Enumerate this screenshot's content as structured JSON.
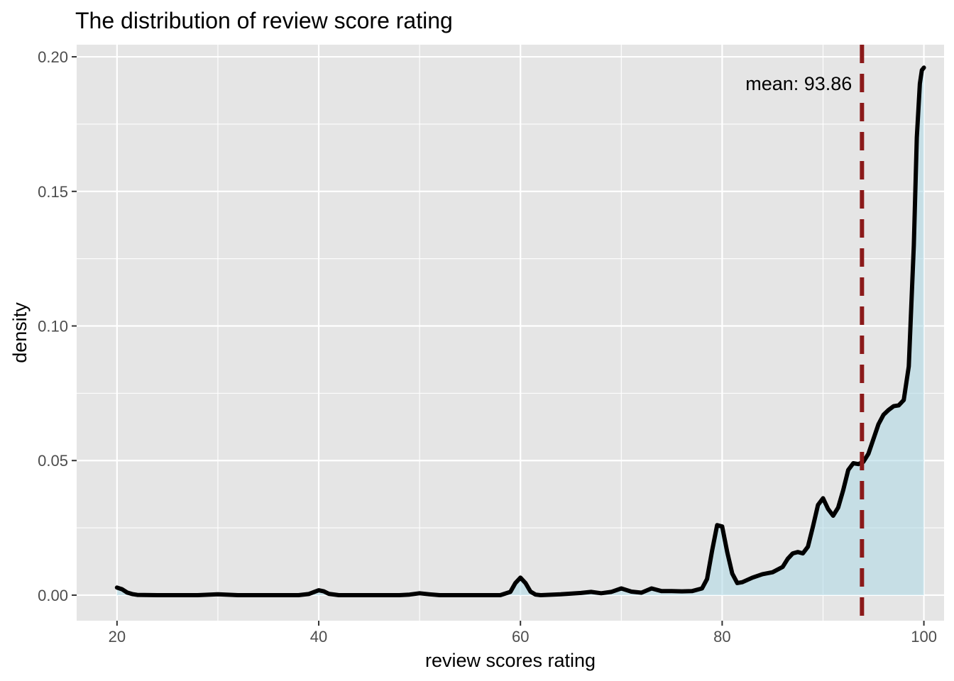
{
  "chart_data": {
    "type": "area",
    "title": "The distribution of review score rating",
    "xlabel": "review scores rating",
    "ylabel": "density",
    "xlim": [
      16,
      102
    ],
    "ylim": [
      -0.0095,
      0.2045
    ],
    "x_ticks": [
      20,
      40,
      60,
      80,
      100
    ],
    "x_tick_labels": [
      "20",
      "40",
      "60",
      "80",
      "100"
    ],
    "x_minor_ticks": [
      30,
      50,
      70,
      90
    ],
    "y_ticks": [
      0.0,
      0.05,
      0.1,
      0.15,
      0.2
    ],
    "y_tick_labels": [
      "0.00",
      "0.05",
      "0.10",
      "0.15",
      "0.20"
    ],
    "y_minor_ticks": [
      0.025,
      0.075,
      0.125,
      0.175
    ],
    "grid": true,
    "series": [
      {
        "x": [
          20,
          20.5,
          21,
          21.5,
          22,
          24,
          26,
          28,
          30,
          32,
          34,
          36,
          38,
          39,
          40,
          40.5,
          41,
          42,
          44,
          46,
          48,
          49,
          50,
          51,
          52,
          54,
          56,
          58,
          59,
          59.5,
          60,
          60.5,
          61,
          61.5,
          62,
          64,
          66,
          67,
          68,
          69,
          70,
          71,
          72,
          73,
          74,
          75,
          76,
          77,
          78,
          78.5,
          79,
          79.5,
          80,
          80.5,
          81,
          81.5,
          82,
          83,
          84,
          85,
          86,
          86.5,
          87,
          87.5,
          88,
          88.5,
          89,
          89.5,
          90,
          90.5,
          91,
          91.5,
          92,
          92.5,
          93,
          93.5,
          94,
          94.5,
          95,
          95.5,
          96,
          96.5,
          97,
          97.5,
          98,
          98.5,
          99,
          99.3,
          99.6,
          99.8,
          100
        ],
        "y": [
          0.0028,
          0.0022,
          0.001,
          0.0004,
          0.0001,
          0.0,
          0.0,
          0.0,
          0.0003,
          0.0,
          0.0,
          0.0,
          0.0,
          0.0004,
          0.0018,
          0.0014,
          0.0005,
          0.0,
          0.0,
          0.0,
          0.0,
          0.0002,
          0.0007,
          0.0003,
          0.0,
          0.0,
          0.0,
          0.0,
          0.0012,
          0.0045,
          0.0065,
          0.0045,
          0.0013,
          0.0002,
          0.0,
          0.0003,
          0.0008,
          0.0012,
          0.0007,
          0.0012,
          0.0025,
          0.0013,
          0.0009,
          0.0025,
          0.0015,
          0.0015,
          0.0014,
          0.0015,
          0.0025,
          0.006,
          0.0165,
          0.026,
          0.0255,
          0.016,
          0.008,
          0.0045,
          0.0048,
          0.0065,
          0.0078,
          0.0085,
          0.0105,
          0.0135,
          0.0155,
          0.016,
          0.0155,
          0.018,
          0.0255,
          0.0335,
          0.036,
          0.032,
          0.0295,
          0.0325,
          0.039,
          0.0465,
          0.049,
          0.0487,
          0.0495,
          0.0525,
          0.058,
          0.0635,
          0.067,
          0.0688,
          0.0702,
          0.0705,
          0.0725,
          0.085,
          0.13,
          0.17,
          0.19,
          0.195,
          0.196
        ]
      }
    ],
    "fill_color": "#add8e6",
    "line_color": "#000000",
    "panel_background": "#e5e5e5",
    "grid_color": "#ffffff",
    "mean_line": {
      "x": 93.86,
      "color": "#8b1a1a",
      "style": "dashed"
    },
    "annotation": {
      "text": "mean: 93.86",
      "x": 93.86,
      "y": 0.19
    }
  }
}
